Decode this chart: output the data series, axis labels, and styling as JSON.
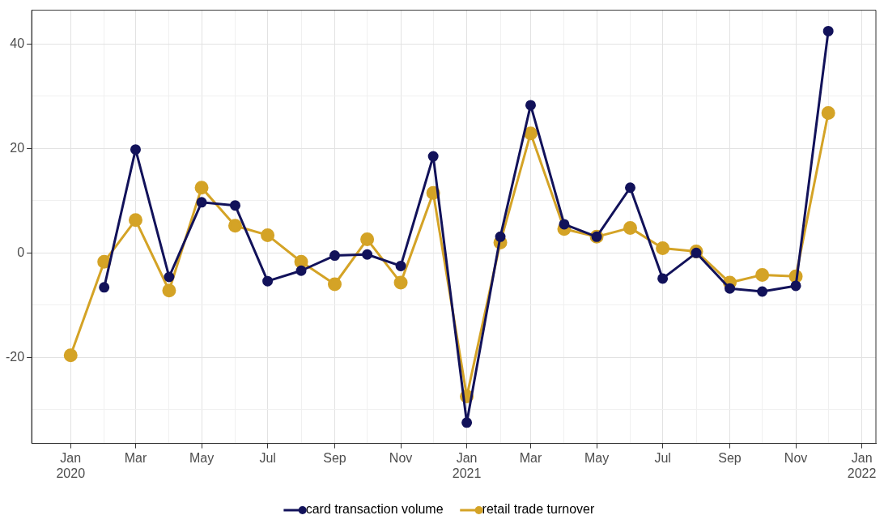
{
  "chart_data": {
    "type": "line",
    "x": [
      "2020-01",
      "2020-02",
      "2020-03",
      "2020-04",
      "2020-05",
      "2020-06",
      "2020-07",
      "2020-08",
      "2020-09",
      "2020-10",
      "2020-11",
      "2020-12",
      "2021-01",
      "2021-02",
      "2021-03",
      "2021-04",
      "2021-05",
      "2021-06",
      "2021-07",
      "2021-08",
      "2021-09",
      "2021-10",
      "2021-11",
      "2021-12"
    ],
    "series": [
      {
        "name": "card transaction volume",
        "color": "#12125a",
        "values": [
          null,
          -6.6,
          19.8,
          -4.6,
          9.7,
          9.1,
          -5.4,
          -3.4,
          -0.5,
          -0.3,
          -2.5,
          18.5,
          -32.5,
          3.1,
          28.3,
          5.5,
          3.1,
          12.5,
          -4.9,
          0,
          -6.8,
          -7.4,
          -6.3,
          42.5
        ]
      },
      {
        "name": "retail trade turnover",
        "color": "#d4a326",
        "values": [
          -19.6,
          -1.7,
          6.3,
          -7.2,
          12.5,
          5.2,
          3.4,
          -1.7,
          -6.0,
          2.6,
          -5.7,
          11.5,
          -27.5,
          2.0,
          22.9,
          4.6,
          3.1,
          4.8,
          0.9,
          0.3,
          -5.7,
          -4.2,
          -4.5,
          26.8
        ]
      }
    ],
    "xlim": [
      "2019-11-26",
      "2022-01-14"
    ],
    "xticks": [
      {
        "value": "2020-01",
        "label": "Jan\n2020"
      },
      {
        "value": "2020-02",
        "label": null
      },
      {
        "value": "2020-03",
        "label": "Mar"
      },
      {
        "value": "2020-04",
        "label": null
      },
      {
        "value": "2020-05",
        "label": "May"
      },
      {
        "value": "2020-06",
        "label": null
      },
      {
        "value": "2020-07",
        "label": "Jul"
      },
      {
        "value": "2020-08",
        "label": null
      },
      {
        "value": "2020-09",
        "label": "Sep"
      },
      {
        "value": "2020-10",
        "label": null
      },
      {
        "value": "2020-11",
        "label": "Nov"
      },
      {
        "value": "2020-12",
        "label": null
      },
      {
        "value": "2021-01",
        "label": "Jan\n2021"
      },
      {
        "value": "2021-02",
        "label": null
      },
      {
        "value": "2021-03",
        "label": "Mar"
      },
      {
        "value": "2021-04",
        "label": null
      },
      {
        "value": "2021-05",
        "label": "May"
      },
      {
        "value": "2021-06",
        "label": null
      },
      {
        "value": "2021-07",
        "label": "Jul"
      },
      {
        "value": "2021-08",
        "label": null
      },
      {
        "value": "2021-09",
        "label": "Sep"
      },
      {
        "value": "2021-10",
        "label": null
      },
      {
        "value": "2021-11",
        "label": "Nov"
      },
      {
        "value": "2021-12",
        "label": null
      },
      {
        "value": "2022-01",
        "label": "Jan\n2022"
      }
    ],
    "ylim": [
      -36.5,
      46.5
    ],
    "yticks": [
      {
        "value": -30,
        "label": null
      },
      -20,
      {
        "value": -10,
        "label": null
      },
      0,
      {
        "value": 10,
        "label": null
      },
      20,
      {
        "value": 30,
        "label": null
      },
      40
    ],
    "grid": true,
    "legend": "bottom",
    "marker": "circle",
    "line_style": "solid"
  }
}
